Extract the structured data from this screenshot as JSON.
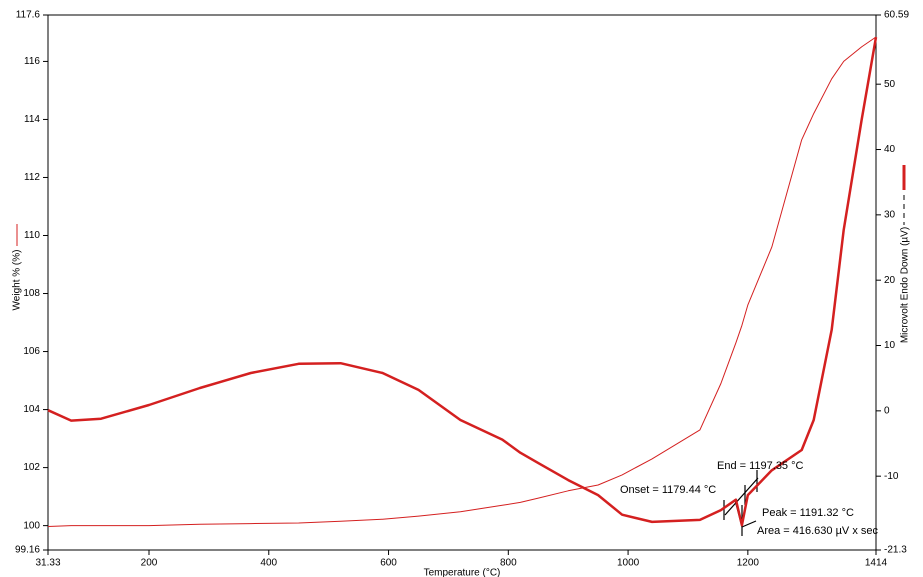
{
  "chart_data": {
    "type": "line",
    "xlabel": "Temperature (°C)",
    "ylabel": "Weight % (%)",
    "y2label": "Microvolt Endo Down (µV)",
    "x": [
      31.33,
      70,
      120,
      200,
      285,
      370,
      450,
      520,
      590,
      650,
      720,
      790,
      820,
      850,
      900,
      950,
      990,
      1040,
      1120,
      1155,
      1180,
      1190,
      1200,
      1240,
      1290,
      1310,
      1340,
      1360,
      1390,
      1414
    ],
    "series": [
      {
        "color": "#d42020",
        "width": 1,
        "values": [
          99.97,
          100.0,
          100.0,
          100.0,
          100.05,
          100.07,
          100.09,
          100.15,
          100.22,
          100.33,
          100.48,
          100.7,
          100.8,
          100.95,
          101.2,
          101.4,
          101.75,
          102.3,
          103.3,
          104.9,
          106.3,
          106.9,
          107.6,
          109.6,
          113.3,
          114.2,
          115.4,
          116.0,
          116.5,
          116.84
        ]
      },
      {
        "color": "#d42020",
        "width": 2.5,
        "axis": "y2",
        "values": [
          0.1,
          -1.5,
          -1.2,
          0.9,
          3.5,
          5.8,
          7.2,
          7.3,
          5.8,
          3.2,
          -1.4,
          -4.4,
          -6.4,
          -8.0,
          -10.6,
          -12.9,
          -15.9,
          -17.0,
          -16.7,
          -15.2,
          -13.6,
          -17.5,
          -12.9,
          -9.1,
          -6.0,
          -1.4,
          12.4,
          27.7,
          44.5,
          57.2
        ]
      }
    ],
    "xlim": [
      31.33,
      1414
    ],
    "xticks": [
      31.33,
      200,
      400,
      600,
      800,
      1000,
      1200,
      1414
    ],
    "ylim": [
      99.16,
      117.6
    ],
    "yticks": [
      99.16,
      100,
      102,
      104,
      106,
      108,
      110,
      112,
      114,
      116,
      117.6
    ],
    "y2lim": [
      -21.3,
      60.59
    ],
    "y2ticks": [
      -21.3,
      -10,
      0,
      10,
      20,
      30,
      40,
      50,
      60.59
    ],
    "annotations": [
      "Onset = 1179.44 °C",
      "End = 1197.35 °C",
      "Peak = 1191.32 °C",
      "Area = 416.630 µV x sec"
    ]
  }
}
